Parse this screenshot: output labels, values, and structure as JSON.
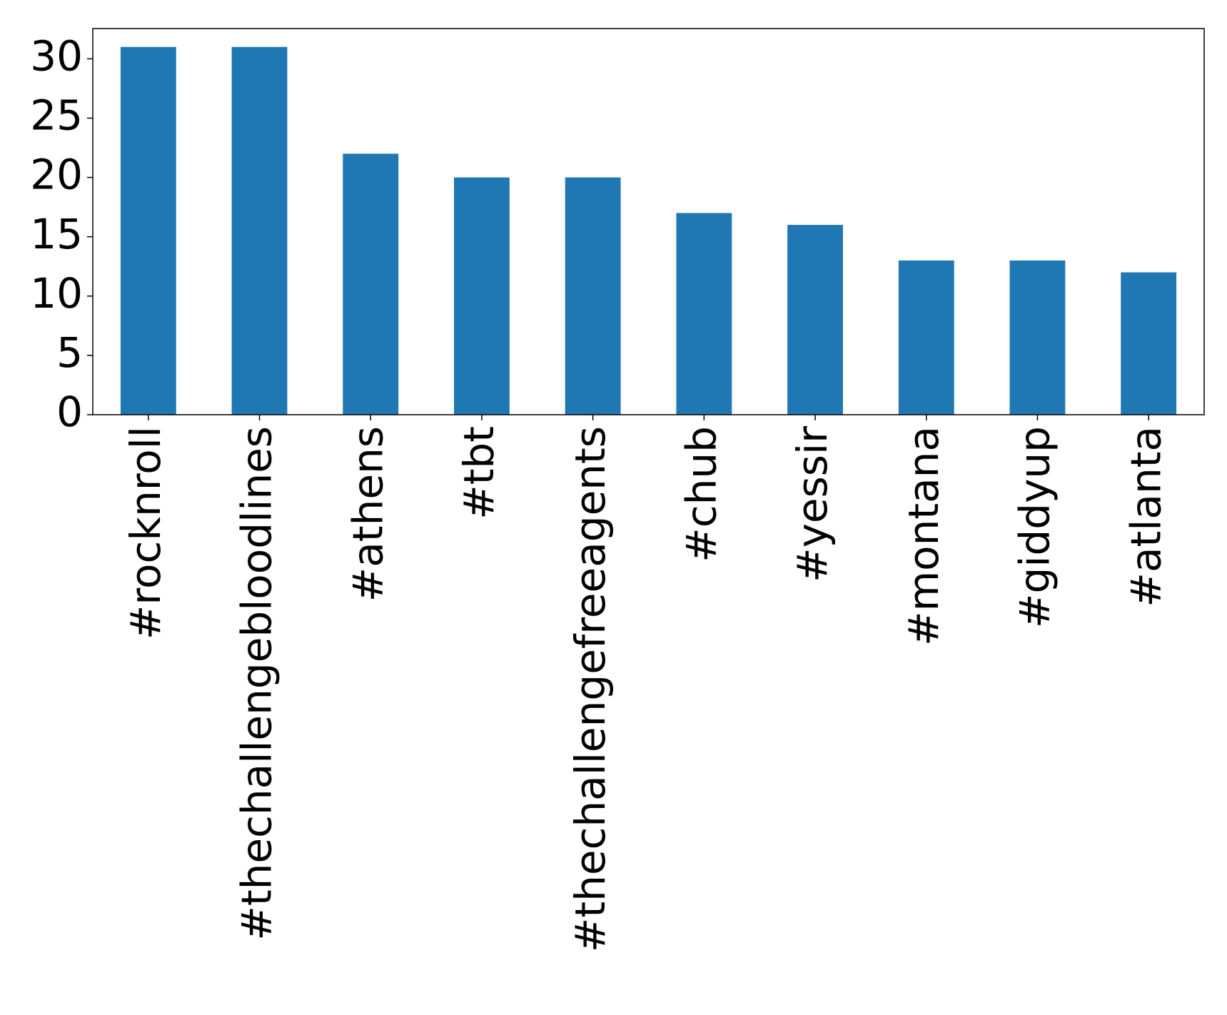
{
  "chart_data": {
    "type": "bar",
    "categories": [
      "#rocknroll",
      "#thechallengebloodlines",
      "#athens",
      "#tbt",
      "#thechallengefreeagents",
      "#chub",
      "#yessir",
      "#montana",
      "#giddyup",
      "#atlanta"
    ],
    "values": [
      31,
      31,
      22,
      20,
      20,
      17,
      16,
      13,
      13,
      12
    ],
    "color": "#1f77b4",
    "ylim": [
      0,
      32.55
    ],
    "yticks": [
      0,
      5,
      10,
      15,
      20,
      25,
      30
    ],
    "grid": false
  }
}
